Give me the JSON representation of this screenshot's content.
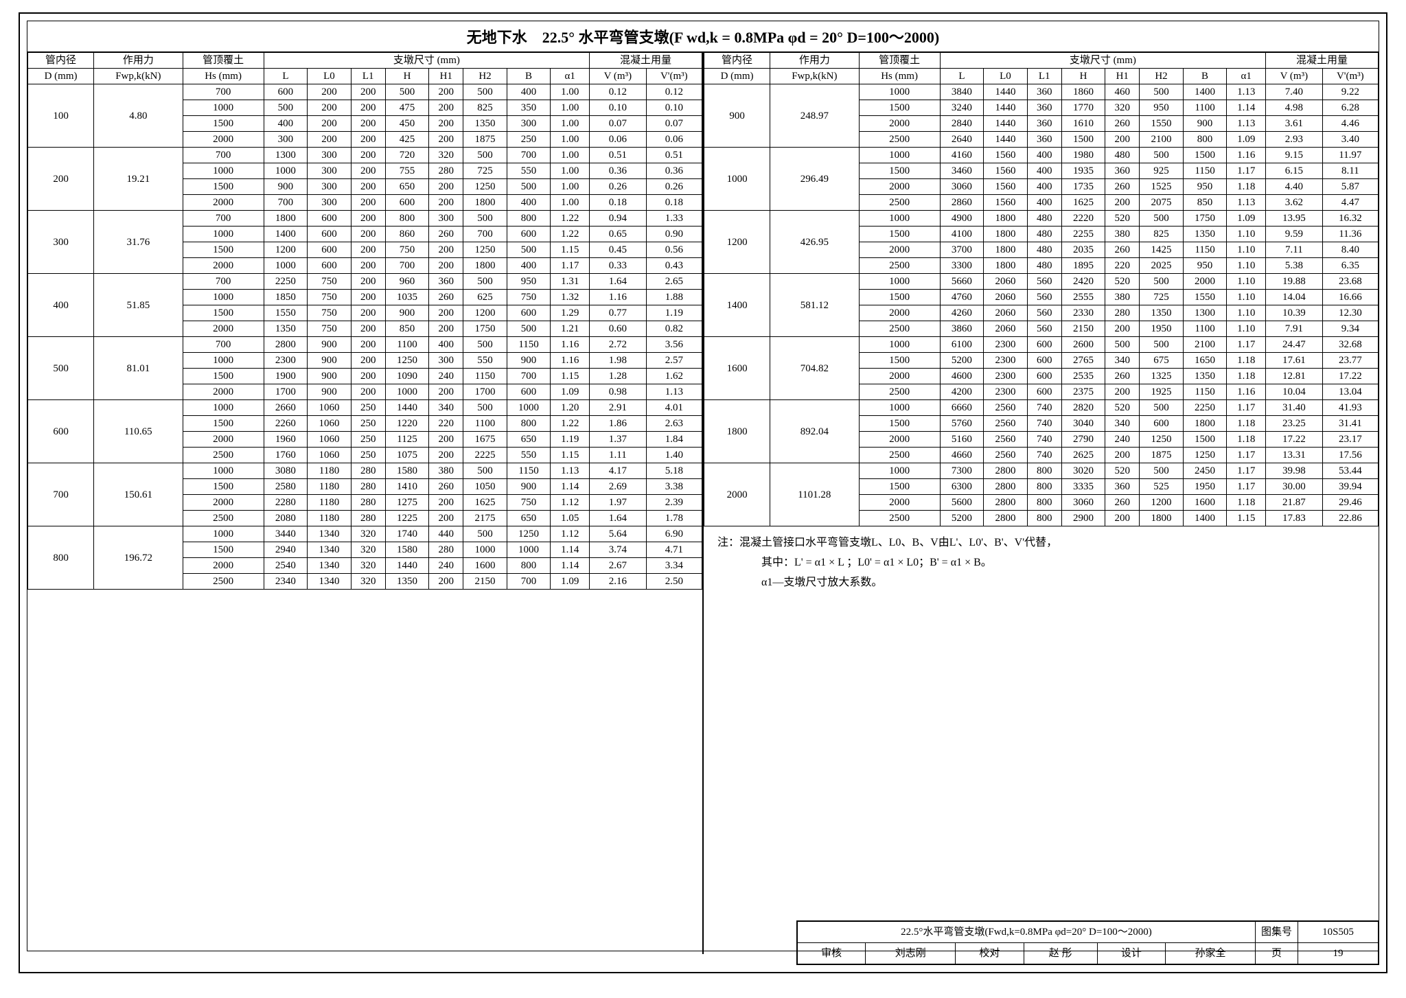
{
  "title": "无地下水　22.5° 水平弯管支墩(F wd,k = 0.8MPa φd = 20° D=100～2000)",
  "headers": {
    "c1": "管内径",
    "c2": "作用力",
    "c3": "管顶覆土",
    "c4": "支墩尺寸 (mm)",
    "c5": "混凝土用量",
    "d": "D (mm)",
    "f": "Fwp,k(kN)",
    "hs": "Hs (mm)",
    "L": "L",
    "L0": "L0",
    "L1": "L1",
    "H": "H",
    "H1": "H1",
    "H2": "H2",
    "B": "B",
    "a1": "α1",
    "V": "V (m³)",
    "Vp": "V'(m³)"
  },
  "groupsLeft": [
    {
      "D": 100,
      "F": "4.80",
      "rows": [
        [
          700,
          600,
          200,
          200,
          500,
          200,
          500,
          400,
          "1.00",
          "0.12",
          "0.12"
        ],
        [
          1000,
          500,
          200,
          200,
          475,
          200,
          825,
          350,
          "1.00",
          "0.10",
          "0.10"
        ],
        [
          1500,
          400,
          200,
          200,
          450,
          200,
          1350,
          300,
          "1.00",
          "0.07",
          "0.07"
        ],
        [
          2000,
          300,
          200,
          200,
          425,
          200,
          1875,
          250,
          "1.00",
          "0.06",
          "0.06"
        ]
      ]
    },
    {
      "D": 200,
      "F": "19.21",
      "rows": [
        [
          700,
          1300,
          300,
          200,
          720,
          320,
          500,
          700,
          "1.00",
          "0.51",
          "0.51"
        ],
        [
          1000,
          1000,
          300,
          200,
          755,
          280,
          725,
          550,
          "1.00",
          "0.36",
          "0.36"
        ],
        [
          1500,
          900,
          300,
          200,
          650,
          200,
          1250,
          500,
          "1.00",
          "0.26",
          "0.26"
        ],
        [
          2000,
          700,
          300,
          200,
          600,
          200,
          1800,
          400,
          "1.00",
          "0.18",
          "0.18"
        ]
      ]
    },
    {
      "D": 300,
      "F": "31.76",
      "rows": [
        [
          700,
          1800,
          600,
          200,
          800,
          300,
          500,
          800,
          "1.22",
          "0.94",
          "1.33"
        ],
        [
          1000,
          1400,
          600,
          200,
          860,
          260,
          700,
          600,
          "1.22",
          "0.65",
          "0.90"
        ],
        [
          1500,
          1200,
          600,
          200,
          750,
          200,
          1250,
          500,
          "1.15",
          "0.45",
          "0.56"
        ],
        [
          2000,
          1000,
          600,
          200,
          700,
          200,
          1800,
          400,
          "1.17",
          "0.33",
          "0.43"
        ]
      ]
    },
    {
      "D": 400,
      "F": "51.85",
      "rows": [
        [
          700,
          2250,
          750,
          200,
          960,
          360,
          500,
          950,
          "1.31",
          "1.64",
          "2.65"
        ],
        [
          1000,
          1850,
          750,
          200,
          1035,
          260,
          625,
          750,
          "1.32",
          "1.16",
          "1.88"
        ],
        [
          1500,
          1550,
          750,
          200,
          900,
          200,
          1200,
          600,
          "1.29",
          "0.77",
          "1.19"
        ],
        [
          2000,
          1350,
          750,
          200,
          850,
          200,
          1750,
          500,
          "1.21",
          "0.60",
          "0.82"
        ]
      ]
    },
    {
      "D": 500,
      "F": "81.01",
      "rows": [
        [
          700,
          2800,
          900,
          200,
          1100,
          400,
          500,
          1150,
          "1.16",
          "2.72",
          "3.56"
        ],
        [
          1000,
          2300,
          900,
          200,
          1250,
          300,
          550,
          900,
          "1.16",
          "1.98",
          "2.57"
        ],
        [
          1500,
          1900,
          900,
          200,
          1090,
          240,
          1150,
          700,
          "1.15",
          "1.28",
          "1.62"
        ],
        [
          2000,
          1700,
          900,
          200,
          1000,
          200,
          1700,
          600,
          "1.09",
          "0.98",
          "1.13"
        ]
      ]
    },
    {
      "D": 600,
      "F": "110.65",
      "rows": [
        [
          1000,
          2660,
          1060,
          250,
          1440,
          340,
          500,
          1000,
          "1.20",
          "2.91",
          "4.01"
        ],
        [
          1500,
          2260,
          1060,
          250,
          1220,
          220,
          1100,
          800,
          "1.22",
          "1.86",
          "2.63"
        ],
        [
          2000,
          1960,
          1060,
          250,
          1125,
          200,
          1675,
          650,
          "1.19",
          "1.37",
          "1.84"
        ],
        [
          2500,
          1760,
          1060,
          250,
          1075,
          200,
          2225,
          550,
          "1.15",
          "1.11",
          "1.40"
        ]
      ]
    },
    {
      "D": 700,
      "F": "150.61",
      "rows": [
        [
          1000,
          3080,
          1180,
          280,
          1580,
          380,
          500,
          1150,
          "1.13",
          "4.17",
          "5.18"
        ],
        [
          1500,
          2580,
          1180,
          280,
          1410,
          260,
          1050,
          900,
          "1.14",
          "2.69",
          "3.38"
        ],
        [
          2000,
          2280,
          1180,
          280,
          1275,
          200,
          1625,
          750,
          "1.12",
          "1.97",
          "2.39"
        ],
        [
          2500,
          2080,
          1180,
          280,
          1225,
          200,
          2175,
          650,
          "1.05",
          "1.64",
          "1.78"
        ]
      ]
    },
    {
      "D": 800,
      "F": "196.72",
      "rows": [
        [
          1000,
          3440,
          1340,
          320,
          1740,
          440,
          500,
          1250,
          "1.12",
          "5.64",
          "6.90"
        ],
        [
          1500,
          2940,
          1340,
          320,
          1580,
          280,
          1000,
          1000,
          "1.14",
          "3.74",
          "4.71"
        ],
        [
          2000,
          2540,
          1340,
          320,
          1440,
          240,
          1600,
          800,
          "1.14",
          "2.67",
          "3.34"
        ],
        [
          2500,
          2340,
          1340,
          320,
          1350,
          200,
          2150,
          700,
          "1.09",
          "2.16",
          "2.50"
        ]
      ]
    }
  ],
  "groupsRight": [
    {
      "D": 900,
      "F": "248.97",
      "rows": [
        [
          1000,
          3840,
          1440,
          360,
          1860,
          460,
          500,
          1400,
          "1.13",
          "7.40",
          "9.22"
        ],
        [
          1500,
          3240,
          1440,
          360,
          1770,
          320,
          950,
          1100,
          "1.14",
          "4.98",
          "6.28"
        ],
        [
          2000,
          2840,
          1440,
          360,
          1610,
          260,
          1550,
          900,
          "1.13",
          "3.61",
          "4.46"
        ],
        [
          2500,
          2640,
          1440,
          360,
          1500,
          200,
          2100,
          800,
          "1.09",
          "2.93",
          "3.40"
        ]
      ]
    },
    {
      "D": 1000,
      "F": "296.49",
      "rows": [
        [
          1000,
          4160,
          1560,
          400,
          1980,
          480,
          500,
          1500,
          "1.16",
          "9.15",
          "11.97"
        ],
        [
          1500,
          3460,
          1560,
          400,
          1935,
          360,
          925,
          1150,
          "1.17",
          "6.15",
          "8.11"
        ],
        [
          2000,
          3060,
          1560,
          400,
          1735,
          260,
          1525,
          950,
          "1.18",
          "4.40",
          "5.87"
        ],
        [
          2500,
          2860,
          1560,
          400,
          1625,
          200,
          2075,
          850,
          "1.13",
          "3.62",
          "4.47"
        ]
      ]
    },
    {
      "D": 1200,
      "F": "426.95",
      "rows": [
        [
          1000,
          4900,
          1800,
          480,
          2220,
          520,
          500,
          1750,
          "1.09",
          "13.95",
          "16.32"
        ],
        [
          1500,
          4100,
          1800,
          480,
          2255,
          380,
          825,
          1350,
          "1.10",
          "9.59",
          "11.36"
        ],
        [
          2000,
          3700,
          1800,
          480,
          2035,
          260,
          1425,
          1150,
          "1.10",
          "7.11",
          "8.40"
        ],
        [
          2500,
          3300,
          1800,
          480,
          1895,
          220,
          2025,
          950,
          "1.10",
          "5.38",
          "6.35"
        ]
      ]
    },
    {
      "D": 1400,
      "F": "581.12",
      "rows": [
        [
          1000,
          5660,
          2060,
          560,
          2420,
          520,
          500,
          2000,
          "1.10",
          "19.88",
          "23.68"
        ],
        [
          1500,
          4760,
          2060,
          560,
          2555,
          380,
          725,
          1550,
          "1.10",
          "14.04",
          "16.66"
        ],
        [
          2000,
          4260,
          2060,
          560,
          2330,
          280,
          1350,
          1300,
          "1.10",
          "10.39",
          "12.30"
        ],
        [
          2500,
          3860,
          2060,
          560,
          2150,
          200,
          1950,
          1100,
          "1.10",
          "7.91",
          "9.34"
        ]
      ]
    },
    {
      "D": 1600,
      "F": "704.82",
      "rows": [
        [
          1000,
          6100,
          2300,
          600,
          2600,
          500,
          500,
          2100,
          "1.17",
          "24.47",
          "32.68"
        ],
        [
          1500,
          5200,
          2300,
          600,
          2765,
          340,
          675,
          1650,
          "1.18",
          "17.61",
          "23.77"
        ],
        [
          2000,
          4600,
          2300,
          600,
          2535,
          260,
          1325,
          1350,
          "1.18",
          "12.81",
          "17.22"
        ],
        [
          2500,
          4200,
          2300,
          600,
          2375,
          200,
          1925,
          1150,
          "1.16",
          "10.04",
          "13.04"
        ]
      ]
    },
    {
      "D": 1800,
      "F": "892.04",
      "rows": [
        [
          1000,
          6660,
          2560,
          740,
          2820,
          520,
          500,
          2250,
          "1.17",
          "31.40",
          "41.93"
        ],
        [
          1500,
          5760,
          2560,
          740,
          3040,
          340,
          600,
          1800,
          "1.18",
          "23.25",
          "31.41"
        ],
        [
          2000,
          5160,
          2560,
          740,
          2790,
          240,
          1250,
          1500,
          "1.18",
          "17.22",
          "23.17"
        ],
        [
          2500,
          4660,
          2560,
          740,
          2625,
          200,
          1875,
          1250,
          "1.17",
          "13.31",
          "17.56"
        ]
      ]
    },
    {
      "D": 2000,
      "F": "1101.28",
      "rows": [
        [
          1000,
          7300,
          2800,
          800,
          3020,
          520,
          500,
          2450,
          "1.17",
          "39.98",
          "53.44"
        ],
        [
          1500,
          6300,
          2800,
          800,
          3335,
          360,
          525,
          1950,
          "1.17",
          "30.00",
          "39.94"
        ],
        [
          2000,
          5600,
          2800,
          800,
          3060,
          260,
          1200,
          1600,
          "1.18",
          "21.87",
          "29.46"
        ],
        [
          2500,
          5200,
          2800,
          800,
          2900,
          200,
          1800,
          1400,
          "1.15",
          "17.83",
          "22.86"
        ]
      ]
    }
  ],
  "note": {
    "l1": "注：混凝土管接口水平弯管支墩L、L0、B、V由L'、L0'、B'、V'代替，",
    "l2": "其中：L' = α1 × L ；L0' = α1 × L0；B' = α1 × B。",
    "l3": "α1—支墩尺寸放大系数。"
  },
  "footer": {
    "titleText": "22.5°水平弯管支墩(Fwd,k=0.8MPa φd=20° D=100～2000)",
    "drawingSetLabel": "图集号",
    "drawingSet": "10S505",
    "shenheLabel": "审核",
    "shenhe": "刘志刚",
    "jiaoduiLabel": "校对",
    "jiaodui": "赵 彤",
    "shejiLabel": "设计",
    "sheji": "孙家全",
    "pageLabel": "页",
    "page": "19"
  }
}
